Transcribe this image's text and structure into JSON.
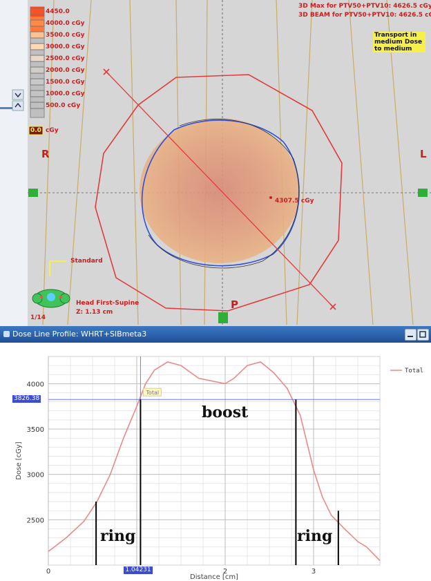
{
  "scan_view": {
    "dose_legend": [
      "4450.0",
      "4000.0 cGy",
      "3500.0 cGy",
      "3000.0 cGy",
      "2500.0 cGy",
      "2000.0 cGy",
      "1500.0 cGy",
      "1000.0 cGy",
      "500.0 cGy"
    ],
    "dose_legend_colors": [
      "#ff5020",
      "#ff8a45",
      "#ffc090",
      "#ffd9b5",
      "#e8d8c8",
      "#d0ccc8",
      "#c8c8c8",
      "#c4c4c4",
      "#c0c0c0"
    ],
    "header_lines": [
      "3D Max for PTV50+PTV10: 4626.5 cGy",
      "3D BEAM for PTV50+PTV10: 4626.5 cGy"
    ],
    "transport_info": "Transport in medium Dose to medium",
    "small_box_label": "0.0",
    "small_box_unit": "cGy",
    "orientation": {
      "right": "R",
      "left": "L",
      "posterior": "P"
    },
    "point_dose": "4307.5 cGy",
    "standard_label": "Standard",
    "head_label_1": "Head First-Supine",
    "head_label_2": "Z: 1.13 cm",
    "slice_label": "1/14"
  },
  "profile_panel": {
    "title": "Dose Line Profile: WHRT+SIBmeta3",
    "cursor_dose": "3826.38",
    "cursor_distance": "1.04231",
    "tooltip": "Total",
    "annotations": {
      "boost": "boost",
      "ring_left": "ring",
      "ring_right": "ring"
    }
  },
  "chart_data": {
    "type": "line",
    "xlabel": "Distance [cm]",
    "ylabel": "Dose [cGy]",
    "xlim": [
      0,
      3.75
    ],
    "ylim": [
      2000,
      4300
    ],
    "x_ticks": [
      0,
      1,
      2,
      3
    ],
    "x_tick_labels": [
      "0",
      "",
      "2",
      "3"
    ],
    "y_ticks": [
      2500,
      3000,
      3500,
      4000
    ],
    "y_tick_labels": [
      "2500",
      "3000",
      "3500",
      "4000"
    ],
    "grid": true,
    "legend": {
      "position": "top-right",
      "entries": [
        "Total"
      ]
    },
    "series": [
      {
        "name": "Total",
        "color": "#e88a8a",
        "x": [
          0,
          0.2,
          0.4,
          0.55,
          0.7,
          0.85,
          1.0,
          1.1,
          1.2,
          1.35,
          1.5,
          1.7,
          1.9,
          2.0,
          2.1,
          2.25,
          2.4,
          2.55,
          2.7,
          2.85,
          3.0,
          3.1,
          3.2,
          3.35,
          3.5,
          3.6,
          3.75
        ],
        "y": [
          2150,
          2300,
          2480,
          2700,
          3000,
          3400,
          3750,
          4000,
          4150,
          4240,
          4200,
          4060,
          4020,
          4000,
          4060,
          4200,
          4240,
          4120,
          3950,
          3650,
          3050,
          2750,
          2550,
          2400,
          2260,
          2200,
          2050
        ]
      }
    ],
    "cursor": {
      "x": 1.04231,
      "y": 3826.38
    },
    "markers": [
      {
        "x": 0.54,
        "y_top": 2700,
        "label": "ring"
      },
      {
        "x": 1.04231,
        "y_top": 3826.38,
        "label": ""
      },
      {
        "x": 2.8,
        "y_top": 3826.38,
        "label": ""
      },
      {
        "x": 3.28,
        "y_top": 2600,
        "label": "ring"
      }
    ]
  }
}
